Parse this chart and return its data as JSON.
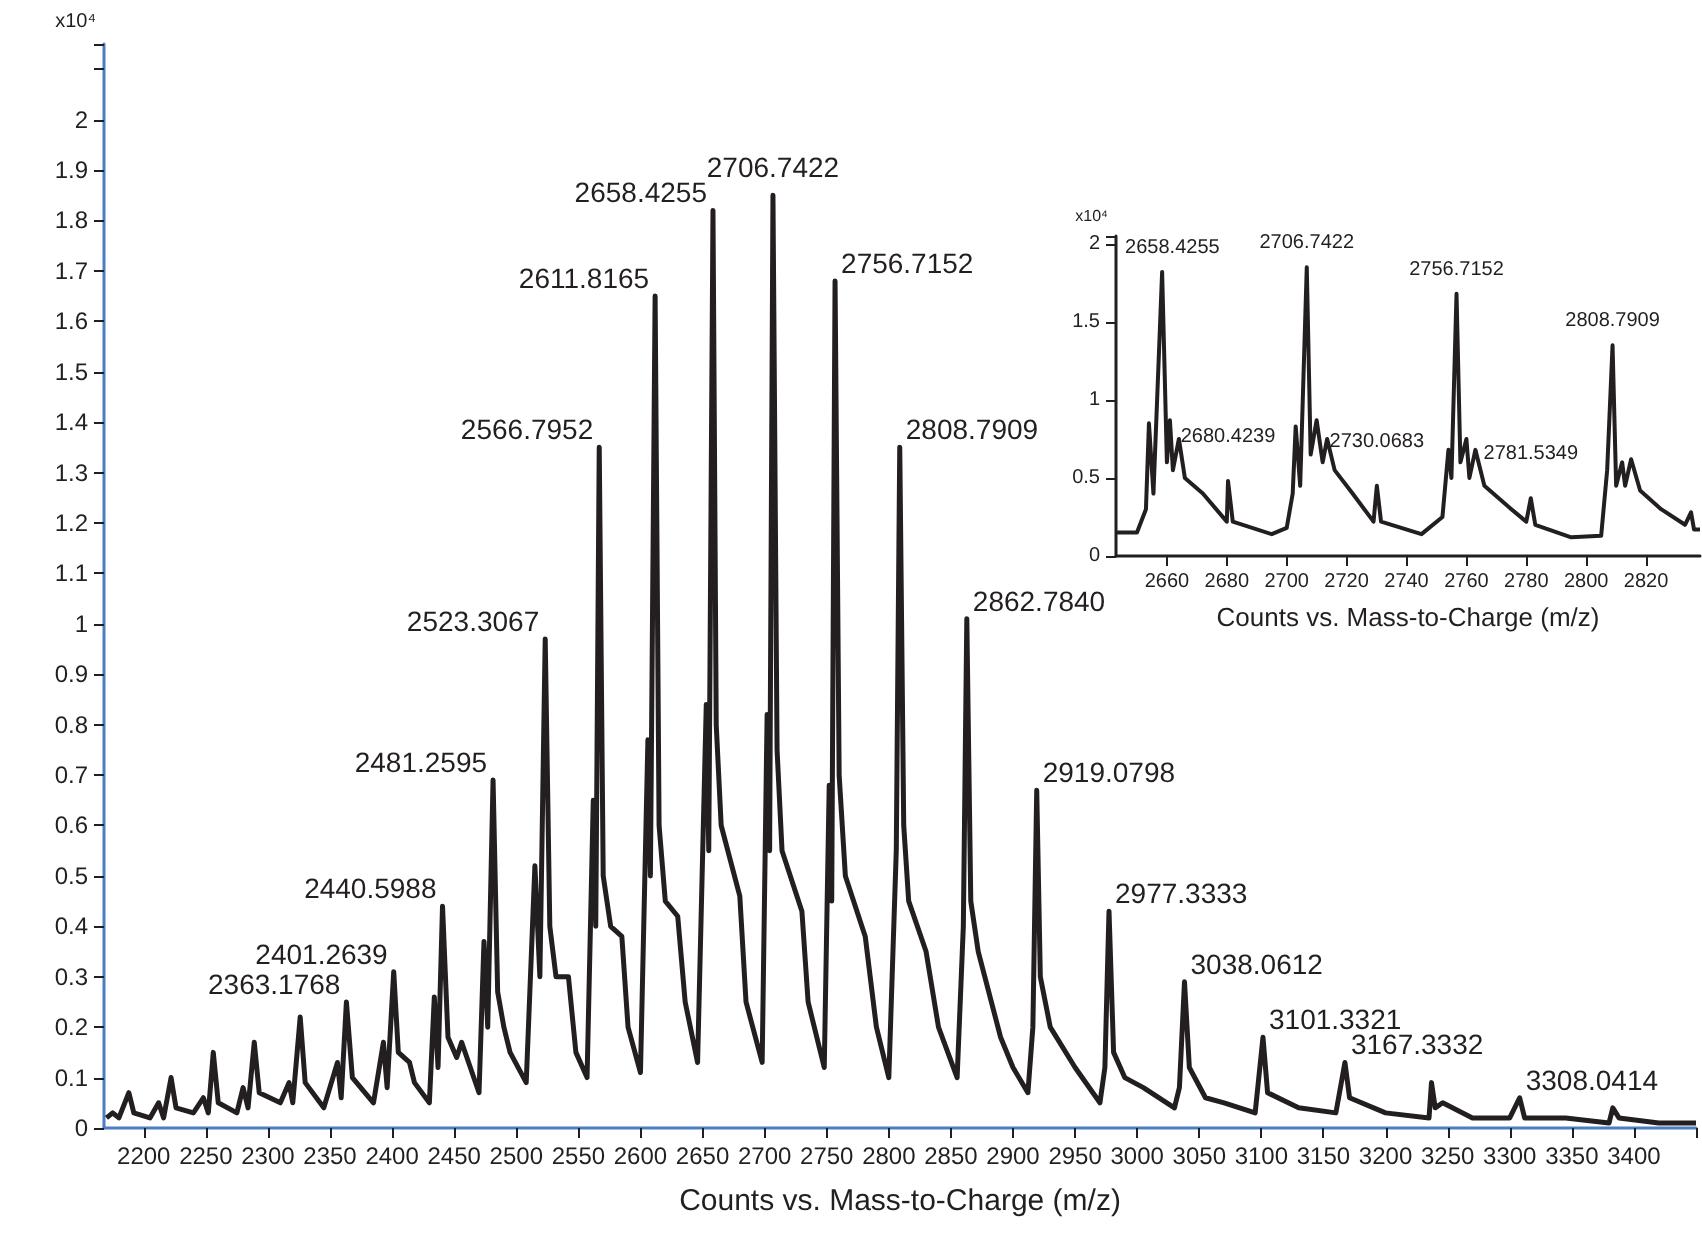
{
  "chart_data": [
    {
      "type": "line",
      "xlabel": "Counts vs. Mass-to-Charge (m/z)",
      "ylabel": "x10⁴",
      "xlim": [
        2168,
        3450
      ],
      "ylim": [
        0,
        2.15
      ],
      "xticks": [
        2200,
        2250,
        2300,
        2350,
        2400,
        2450,
        2500,
        2550,
        2600,
        2650,
        2700,
        2750,
        2800,
        2850,
        2900,
        2950,
        3000,
        3050,
        3100,
        3150,
        3200,
        3250,
        3300,
        3350,
        3400,
        {
          "value": 3450,
          "label": null
        }
      ],
      "yticks": [
        0,
        0.1,
        0.2,
        0.3,
        0.4,
        0.5,
        0.6,
        0.7,
        0.8,
        0.9,
        1,
        1.1,
        1.2,
        1.3,
        1.4,
        1.5,
        1.6,
        1.7,
        1.8,
        1.9,
        2,
        {
          "value": 2.1,
          "label": null
        }
      ],
      "grid": false,
      "series": [
        {
          "color": "#231f20",
          "x": [
            2170,
            2175,
            2180,
            2188,
            2192,
            2205,
            2212,
            2216,
            2222,
            2226,
            2240,
            2248,
            2252,
            2256,
            2260,
            2275,
            2280,
            2284,
            2289,
            2293,
            2310,
            2317,
            2320,
            2326,
            2330,
            2345,
            2356,
            2359,
            2363.2,
            2368,
            2385,
            2393,
            2396,
            2401.3,
            2405,
            2414,
            2418,
            2430,
            2434,
            2437,
            2440.6,
            2445,
            2452,
            2456,
            2470,
            2474,
            2477,
            2481.3,
            2485,
            2490,
            2495,
            2508,
            2515,
            2519,
            2523.3,
            2527,
            2532,
            2542,
            2548,
            2557,
            2562,
            2564,
            2566.8,
            2570,
            2576,
            2585,
            2590,
            2600,
            2606,
            2608,
            2611.8,
            2615,
            2620,
            2630,
            2636,
            2646,
            2653,
            2655,
            2658.4,
            2661,
            2665,
            2680,
            2685,
            2698,
            2702,
            2704,
            2706.7,
            2710,
            2714,
            2730,
            2735,
            2748,
            2752,
            2754,
            2756.7,
            2760,
            2765,
            2781,
            2790,
            2800,
            2806,
            2808.8,
            2812,
            2816,
            2830,
            2840,
            2855,
            2860,
            2862.8,
            2866,
            2872,
            2890,
            2900,
            2912,
            2916,
            2919.1,
            2922,
            2930,
            2950,
            2970,
            2974,
            2977.3,
            2981,
            2990,
            3005,
            3030,
            3034,
            3038.1,
            3042,
            3055,
            3070,
            3095,
            3101.3,
            3105,
            3130,
            3160,
            3167.3,
            3171,
            3200,
            3235,
            3237,
            3240,
            3246,
            3270,
            3300,
            3308,
            3312,
            3345,
            3380,
            3383,
            3388,
            3420,
            3450
          ],
          "values": [
            0.02,
            0.03,
            0.02,
            0.07,
            0.03,
            0.02,
            0.05,
            0.02,
            0.1,
            0.04,
            0.03,
            0.06,
            0.03,
            0.15,
            0.05,
            0.03,
            0.08,
            0.04,
            0.17,
            0.07,
            0.05,
            0.09,
            0.05,
            0.22,
            0.09,
            0.04,
            0.13,
            0.06,
            0.25,
            0.1,
            0.05,
            0.17,
            0.08,
            0.31,
            0.15,
            0.13,
            0.09,
            0.05,
            0.26,
            0.12,
            0.44,
            0.18,
            0.14,
            0.17,
            0.07,
            0.37,
            0.2,
            0.69,
            0.27,
            0.2,
            0.15,
            0.09,
            0.52,
            0.3,
            0.97,
            0.4,
            0.3,
            0.3,
            0.15,
            0.1,
            0.65,
            0.4,
            1.35,
            0.5,
            0.4,
            0.38,
            0.2,
            0.11,
            0.77,
            0.5,
            1.65,
            0.6,
            0.45,
            0.42,
            0.25,
            0.13,
            0.84,
            0.55,
            1.82,
            0.8,
            0.6,
            0.46,
            0.25,
            0.13,
            0.82,
            0.55,
            1.85,
            0.75,
            0.55,
            0.43,
            0.25,
            0.12,
            0.68,
            0.45,
            1.68,
            0.7,
            0.5,
            0.38,
            0.2,
            0.1,
            0.55,
            1.35,
            0.6,
            0.45,
            0.35,
            0.2,
            0.1,
            0.4,
            1.01,
            0.45,
            0.35,
            0.18,
            0.12,
            0.07,
            0.2,
            0.67,
            0.3,
            0.2,
            0.12,
            0.05,
            0.12,
            0.43,
            0.15,
            0.1,
            0.08,
            0.04,
            0.08,
            0.29,
            0.12,
            0.06,
            0.05,
            0.03,
            0.18,
            0.07,
            0.04,
            0.03,
            0.13,
            0.06,
            0.03,
            0.02,
            0.09,
            0.04,
            0.05,
            0.02,
            0.02,
            0.06,
            0.02,
            0.02,
            0.01,
            0.04,
            0.02,
            0.01,
            0.01
          ]
        }
      ],
      "annotations": [
        {
          "text": "2363.1768",
          "x": 2363.2,
          "y": 0.25
        },
        {
          "text": "2401.2639",
          "x": 2401.3,
          "y": 0.31
        },
        {
          "text": "2440.5988",
          "x": 2440.6,
          "y": 0.44
        },
        {
          "text": "2481.2595",
          "x": 2481.3,
          "y": 0.69
        },
        {
          "text": "2523.3067",
          "x": 2523.3,
          "y": 0.97
        },
        {
          "text": "2566.7952",
          "x": 2566.8,
          "y": 1.35
        },
        {
          "text": "2611.8165",
          "x": 2611.8,
          "y": 1.65
        },
        {
          "text": "2658.4255",
          "x": 2658.4,
          "y": 1.82
        },
        {
          "text": "2706.7422",
          "x": 2706.7,
          "y": 1.85
        },
        {
          "text": "2756.7152",
          "x": 2756.7,
          "y": 1.68
        },
        {
          "text": "2808.7909",
          "x": 2808.8,
          "y": 1.35
        },
        {
          "text": "2862.7840",
          "x": 2862.8,
          "y": 1.01
        },
        {
          "text": "2919.0798",
          "x": 2919.1,
          "y": 0.67
        },
        {
          "text": "2977.3333",
          "x": 2977.3,
          "y": 0.43
        },
        {
          "text": "3038.0612",
          "x": 3038.1,
          "y": 0.29
        },
        {
          "text": "3101.3321",
          "x": 3101.3,
          "y": 0.18
        },
        {
          "text": "3167.3332",
          "x": 3167.3,
          "y": 0.13
        },
        {
          "text": "3308.0414",
          "x": 3308,
          "y": 0.06
        }
      ]
    },
    {
      "type": "line",
      "xlabel": "Counts vs. Mass-to-Charge (m/z)",
      "ylabel": "x10⁴",
      "xlim": [
        2643,
        2838
      ],
      "ylim": [
        0,
        2.05
      ],
      "xticks": [
        2660,
        2680,
        2700,
        2720,
        2740,
        2760,
        2780,
        2800,
        2820
      ],
      "yticks": [
        0,
        0.5,
        1,
        1.5,
        2
      ],
      "grid": false,
      "series": [
        {
          "color": "#231f20",
          "x": [
            2643,
            2650,
            2653,
            2654,
            2655.5,
            2658.4,
            2660,
            2661,
            2662,
            2664,
            2666,
            2672,
            2680,
            2680.4,
            2682,
            2695,
            2700,
            2702,
            2703,
            2704.5,
            2706.7,
            2708,
            2710,
            2712,
            2713.5,
            2716,
            2722,
            2729,
            2730.1,
            2731.5,
            2745,
            2752,
            2754,
            2755,
            2756.7,
            2758,
            2760,
            2761,
            2763,
            2766,
            2775,
            2780,
            2781.5,
            2783,
            2795,
            2805,
            2807,
            2808.8,
            2810,
            2812,
            2813,
            2815,
            2818,
            2825,
            2833,
            2835,
            2836,
            2838
          ],
          "values": [
            0.15,
            0.15,
            0.3,
            0.85,
            0.4,
            1.82,
            0.6,
            0.87,
            0.55,
            0.75,
            0.5,
            0.4,
            0.22,
            0.48,
            0.22,
            0.14,
            0.18,
            0.4,
            0.83,
            0.45,
            1.85,
            0.65,
            0.87,
            0.6,
            0.75,
            0.55,
            0.4,
            0.22,
            0.45,
            0.22,
            0.14,
            0.25,
            0.68,
            0.5,
            1.68,
            0.6,
            0.75,
            0.5,
            0.68,
            0.45,
            0.3,
            0.22,
            0.37,
            0.2,
            0.12,
            0.13,
            0.55,
            1.35,
            0.45,
            0.6,
            0.45,
            0.62,
            0.42,
            0.3,
            0.2,
            0.28,
            0.17,
            0.17
          ]
        }
      ],
      "annotations": [
        {
          "text": "2658.4255",
          "x": 2658.4,
          "y": 1.82
        },
        {
          "text": "2706.7422",
          "x": 2706.7,
          "y": 1.85
        },
        {
          "text": "2756.7152",
          "x": 2756.7,
          "y": 1.68
        },
        {
          "text": "2808.7909",
          "x": 2808.8,
          "y": 1.35
        },
        {
          "text": "2680.4239",
          "x": 2680.4,
          "y": 0.48
        },
        {
          "text": "2730.0683",
          "x": 2730.1,
          "y": 0.45
        },
        {
          "text": "2781.5349",
          "x": 2781.5,
          "y": 0.37
        }
      ]
    }
  ]
}
